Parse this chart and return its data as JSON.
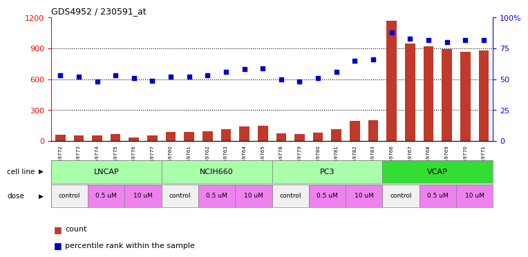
{
  "title": "GDS4952 / 230591_at",
  "samples": [
    "GSM1359772",
    "GSM1359773",
    "GSM1359774",
    "GSM1359775",
    "GSM1359776",
    "GSM1359777",
    "GSM1359760",
    "GSM1359761",
    "GSM1359762",
    "GSM1359763",
    "GSM1359764",
    "GSM1359765",
    "GSM1359778",
    "GSM1359779",
    "GSM1359780",
    "GSM1359781",
    "GSM1359782",
    "GSM1359783",
    "GSM1359766",
    "GSM1359767",
    "GSM1359768",
    "GSM1359769",
    "GSM1359770",
    "GSM1359771"
  ],
  "counts": [
    65,
    58,
    52,
    68,
    35,
    58,
    88,
    90,
    98,
    115,
    140,
    148,
    78,
    68,
    82,
    118,
    195,
    205,
    1170,
    950,
    920,
    895,
    870,
    878
  ],
  "percentile": [
    53,
    52,
    48,
    53,
    51,
    49,
    52,
    52,
    53,
    56,
    58,
    59,
    50,
    48,
    51,
    56,
    65,
    66,
    88,
    83,
    82,
    80,
    82,
    82
  ],
  "bar_color": "#c0392b",
  "dot_color": "#0000cc",
  "left_ylim": [
    0,
    1200
  ],
  "right_ylim": [
    0,
    100
  ],
  "left_yticks": [
    0,
    300,
    600,
    900,
    1200
  ],
  "right_yticks": [
    0,
    25,
    50,
    75,
    100
  ],
  "right_yticklabels": [
    "0",
    "25",
    "50",
    "75",
    "100%"
  ],
  "cell_lines": [
    {
      "name": "LNCAP",
      "start": 0,
      "end": 6,
      "color": "#aaffaa"
    },
    {
      "name": "NCIH660",
      "start": 6,
      "end": 12,
      "color": "#aaffaa"
    },
    {
      "name": "PC3",
      "start": 12,
      "end": 18,
      "color": "#aaffaa"
    },
    {
      "name": "VCAP",
      "start": 18,
      "end": 24,
      "color": "#33dd33"
    }
  ],
  "dose_groups": [
    {
      "name": "control",
      "start": 0,
      "end": 2,
      "color": "#f0f0f0"
    },
    {
      "name": "0.5 uM",
      "start": 2,
      "end": 4,
      "color": "#ee82ee"
    },
    {
      "name": "10 uM",
      "start": 4,
      "end": 6,
      "color": "#ee82ee"
    },
    {
      "name": "control",
      "start": 6,
      "end": 8,
      "color": "#f0f0f0"
    },
    {
      "name": "0.5 uM",
      "start": 8,
      "end": 10,
      "color": "#ee82ee"
    },
    {
      "name": "10 uM",
      "start": 10,
      "end": 12,
      "color": "#ee82ee"
    },
    {
      "name": "control",
      "start": 12,
      "end": 14,
      "color": "#f0f0f0"
    },
    {
      "name": "0.5 uM",
      "start": 14,
      "end": 16,
      "color": "#ee82ee"
    },
    {
      "name": "10 uM",
      "start": 16,
      "end": 18,
      "color": "#ee82ee"
    },
    {
      "name": "control",
      "start": 18,
      "end": 20,
      "color": "#f0f0f0"
    },
    {
      "name": "0.5 uM",
      "start": 20,
      "end": 22,
      "color": "#ee82ee"
    },
    {
      "name": "10 uM",
      "start": 22,
      "end": 24,
      "color": "#ee82ee"
    }
  ],
  "count_label": "count",
  "percentile_label": "percentile rank within the sample",
  "grid_yticks": [
    300,
    600,
    900
  ]
}
